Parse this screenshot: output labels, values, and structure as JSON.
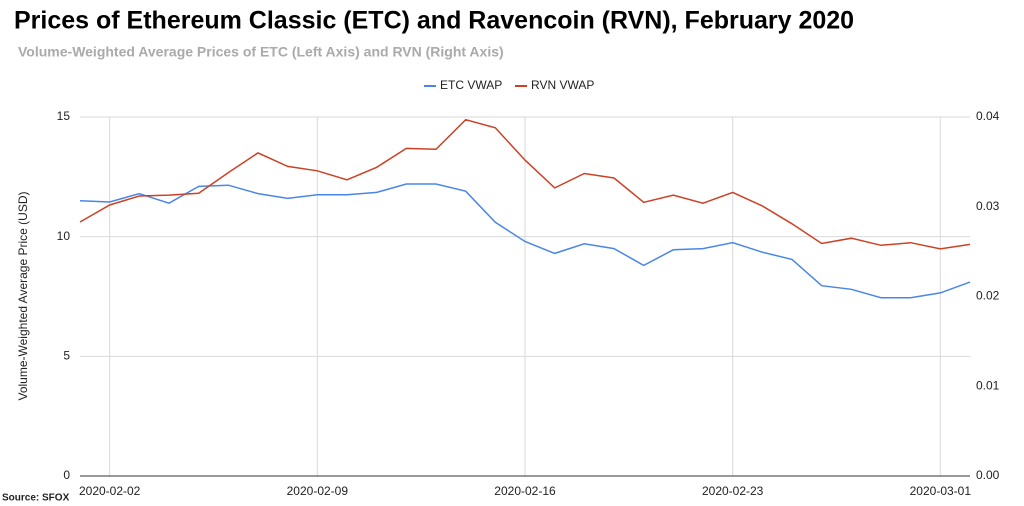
{
  "chart_data": {
    "type": "line",
    "title": "Prices of Ethereum Classic (ETC) and Ravencoin (RVN), February 2020",
    "subtitle": "Volume-Weighted Average Prices of ETC (Left Axis) and RVN (Right Axis)",
    "y_label": "Volume-Weighted Average Price (USD)",
    "source": "Source: SFOX",
    "x": [
      "2020-02-01",
      "2020-02-02",
      "2020-02-03",
      "2020-02-04",
      "2020-02-05",
      "2020-02-06",
      "2020-02-07",
      "2020-02-08",
      "2020-02-09",
      "2020-02-10",
      "2020-02-11",
      "2020-02-12",
      "2020-02-13",
      "2020-02-14",
      "2020-02-15",
      "2020-02-16",
      "2020-02-17",
      "2020-02-18",
      "2020-02-19",
      "2020-02-20",
      "2020-02-21",
      "2020-02-22",
      "2020-02-23",
      "2020-02-24",
      "2020-02-25",
      "2020-02-26",
      "2020-02-27",
      "2020-02-28",
      "2020-02-29",
      "2020-03-01",
      "2020-03-02"
    ],
    "xlim": [
      "2020-02-01",
      "2020-03-02"
    ],
    "xticks": [
      "2020-02-02",
      "2020-02-09",
      "2020-02-16",
      "2020-02-23",
      "2020-03-01"
    ],
    "ylim": [
      0,
      15
    ],
    "yticks": [
      0,
      5,
      10,
      15
    ],
    "y2lim": [
      0,
      0.04
    ],
    "y2ticks": [
      {
        "value": 0,
        "label": "0.00"
      },
      0.01,
      0.02,
      0.03,
      0.04
    ],
    "grid": true,
    "legend": "top",
    "series": [
      {
        "name": "ETC VWAP",
        "color": "#4a86e8",
        "values": [
          11.5,
          11.45,
          11.8,
          11.4,
          12.1,
          12.15,
          11.8,
          11.6,
          11.75,
          11.75,
          11.85,
          12.2,
          12.2,
          11.9,
          10.6,
          9.8,
          9.3,
          9.7,
          9.5,
          8.8,
          9.45,
          9.5,
          9.75,
          9.35,
          9.05,
          7.95,
          7.8,
          7.45,
          7.45,
          7.65,
          8.1
        ]
      },
      {
        "name": "RVN VWAP",
        "color": "#cc4125",
        "axis": "y2",
        "values": [
          0.0283,
          0.0302,
          0.0312,
          0.0313,
          0.0315,
          0.0338,
          0.036,
          0.0345,
          0.034,
          0.033,
          0.0344,
          0.0365,
          0.0364,
          0.0397,
          0.0388,
          0.0352,
          0.0321,
          0.0337,
          0.0332,
          0.0305,
          0.0313,
          0.0304,
          0.0316,
          0.0301,
          0.0281,
          0.0259,
          0.0265,
          0.0257,
          0.026,
          0.0253,
          0.0258
        ]
      }
    ]
  }
}
